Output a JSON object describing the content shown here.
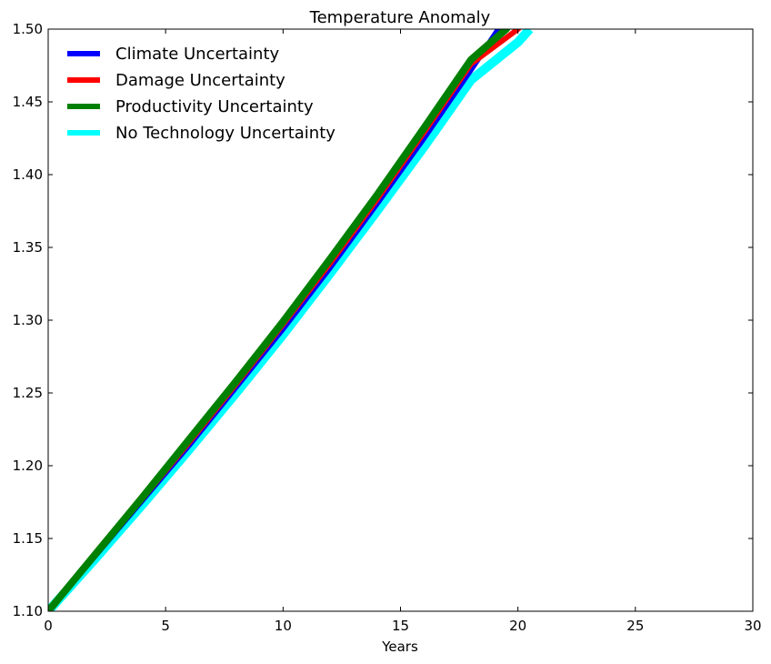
{
  "chart_data": {
    "type": "line",
    "title": "Temperature Anomaly",
    "xlabel": "Years",
    "ylabel": "",
    "xlim": [
      0,
      30
    ],
    "ylim": [
      1.1,
      1.5
    ],
    "xticks": [
      0,
      5,
      10,
      15,
      20,
      25,
      30
    ],
    "yticks": [
      1.1,
      1.15,
      1.2,
      1.25,
      1.3,
      1.35,
      1.4,
      1.45,
      1.5
    ],
    "xtick_labels": [
      "0",
      "5",
      "10",
      "15",
      "20",
      "25",
      "30"
    ],
    "ytick_labels": [
      "1.10",
      "1.15",
      "1.20",
      "1.25",
      "1.30",
      "1.35",
      "1.40",
      "1.45",
      "1.50"
    ],
    "grid": false,
    "legend_position": "top-left",
    "series": [
      {
        "name": "Climate Uncertainty",
        "color": "#0000ff",
        "x": [
          0,
          2,
          4,
          6,
          8,
          10,
          12,
          14,
          16,
          18,
          20,
          20.3
        ],
        "y": [
          1.1,
          1.138,
          1.176,
          1.214,
          1.254,
          1.294,
          1.336,
          1.38,
          1.425,
          1.472,
          1.52,
          1.527
        ]
      },
      {
        "name": "Damage Uncertainty",
        "color": "#ff0000",
        "x": [
          0,
          2,
          4,
          6,
          8,
          10,
          12,
          14,
          16,
          18,
          20,
          20.3
        ],
        "y": [
          1.1,
          1.139,
          1.177,
          1.216,
          1.256,
          1.297,
          1.339,
          1.383,
          1.429,
          1.476,
          1.5,
          1.505
        ]
      },
      {
        "name": "Productivity Uncertainty",
        "color": "#008000",
        "x": [
          0,
          2,
          4,
          6,
          8,
          10,
          12,
          14,
          16,
          18,
          19.5,
          20
        ],
        "y": [
          1.1,
          1.139,
          1.178,
          1.218,
          1.258,
          1.299,
          1.342,
          1.386,
          1.432,
          1.479,
          1.5,
          1.514
        ]
      },
      {
        "name": "No Technology Uncertainty",
        "color": "#00ffff",
        "x": [
          0,
          2,
          4,
          6,
          8,
          10,
          12,
          14,
          16,
          18,
          20,
          20.5
        ],
        "y": [
          1.1,
          1.136,
          1.173,
          1.211,
          1.25,
          1.29,
          1.332,
          1.375,
          1.419,
          1.465,
          1.491,
          1.5
        ]
      }
    ]
  }
}
